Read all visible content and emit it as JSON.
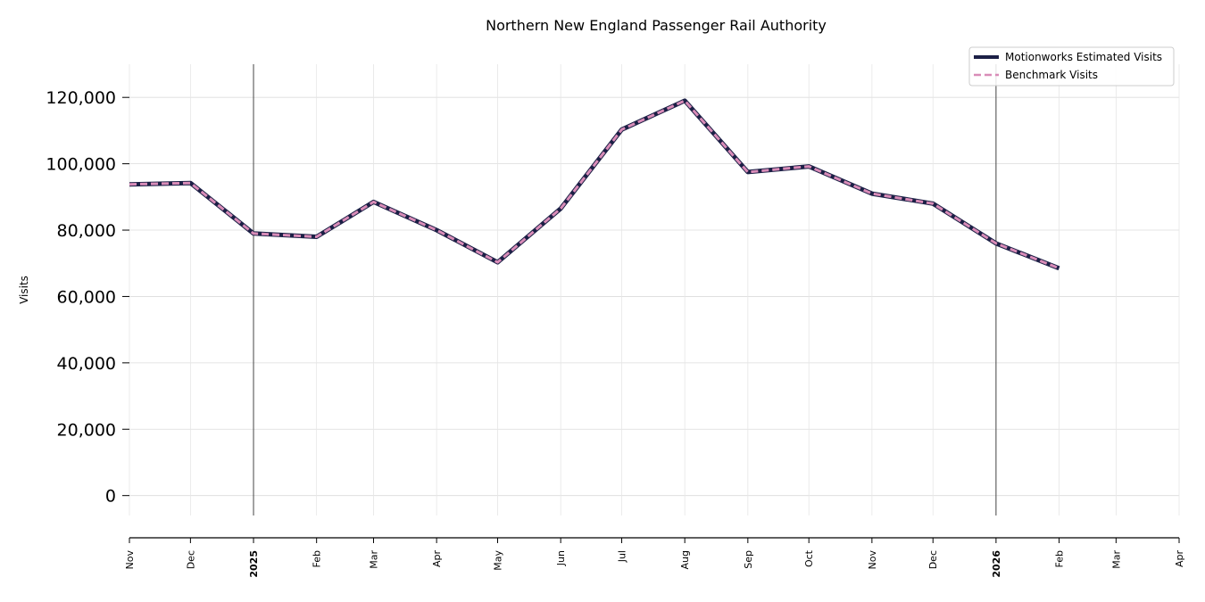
{
  "chart_data": {
    "type": "line",
    "title": "Northern New England Passenger Rail Authority",
    "ylabel": "Visits",
    "xlabel": "",
    "x": [
      "2024-11",
      "2024-12",
      "2025-01",
      "2025-02",
      "2025-03",
      "2025-04",
      "2025-05",
      "2025-06",
      "2025-07",
      "2025-08",
      "2025-09",
      "2025-10",
      "2025-11",
      "2025-12",
      "2026-01",
      "2026-02"
    ],
    "x_tick_labels": [
      "Nov",
      "Dec",
      "2025",
      "Feb",
      "Mar",
      "Apr",
      "May",
      "Jun",
      "Jul",
      "Aug",
      "Sep",
      "Oct",
      "Nov",
      "Dec",
      "2026",
      "Feb",
      "Mar",
      "Apr"
    ],
    "x_range": [
      "2024-11",
      "2026-04"
    ],
    "year_markers": [
      "2025",
      "2026"
    ],
    "ylim": [
      -6000,
      130000
    ],
    "y_ticks": [
      0,
      20000,
      40000,
      60000,
      80000,
      100000,
      120000
    ],
    "y_tick_labels": [
      "0",
      "20,000",
      "40,000",
      "60,000",
      "80,000",
      "100,000",
      "120,000"
    ],
    "grid": true,
    "legend_position": "top-right",
    "series": [
      {
        "name": "Motionworks Estimated Visits",
        "color": "#1c2046",
        "style": "solid",
        "values": [
          93800,
          94200,
          79000,
          78000,
          88500,
          80000,
          70300,
          86500,
          110300,
          119000,
          97500,
          99200,
          91000,
          88000,
          76000,
          68500
        ]
      },
      {
        "name": "Benchmark Visits",
        "color": "#d98cb8",
        "style": "dashed",
        "values": [
          93800,
          94200,
          79000,
          78000,
          88500,
          80000,
          70300,
          86500,
          110300,
          119000,
          97500,
          99200,
          91000,
          88000,
          76000,
          68500
        ]
      }
    ]
  }
}
